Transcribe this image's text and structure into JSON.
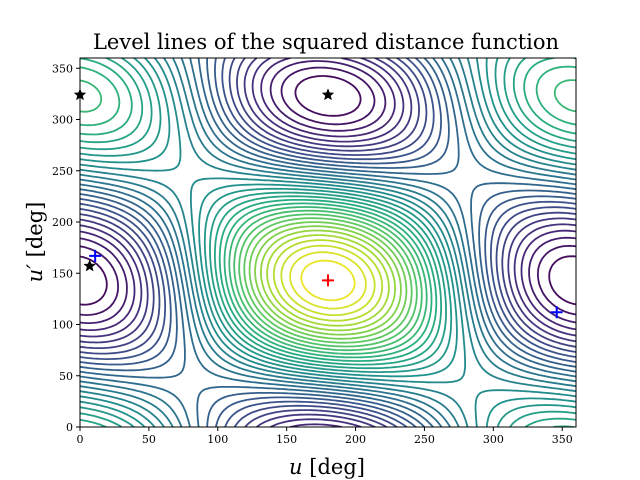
{
  "chart_data": {
    "type": "contour",
    "title": "Level lines of the squared distance function",
    "xlabel_var": "u",
    "xlabel_unit": " [deg]",
    "ylabel_var": "u′",
    "ylabel_unit": " [deg]",
    "xlim": [
      0,
      360
    ],
    "ylim": [
      0,
      360
    ],
    "xticks": [
      0,
      50,
      100,
      150,
      200,
      250,
      300,
      350
    ],
    "yticks": [
      0,
      50,
      100,
      150,
      200,
      250,
      300,
      350
    ],
    "colormap": [
      "#440154",
      "#472d7b",
      "#3b528b",
      "#2c728e",
      "#21918c",
      "#28ae80",
      "#5ec962",
      "#addc30",
      "#fde725"
    ],
    "grid": false,
    "surface": {
      "mode_a": [
        0.9,
        0.9
      ],
      "mode_b": [
        -0.85,
        -0.95
      ],
      "cross": [
        0.35,
        0.2
      ],
      "flat": [
        0.22,
        0.12
      ]
    },
    "levels": 36,
    "markers": [
      {
        "name": "minimum",
        "symbol": "plus",
        "color": "#ff0000",
        "x": 180,
        "y": 143
      },
      {
        "name": "critical-1",
        "symbol": "plus",
        "color": "#0000ff",
        "x": 11,
        "y": 167
      },
      {
        "name": "critical-2",
        "symbol": "plus",
        "color": "#0000ff",
        "x": 346,
        "y": 112
      },
      {
        "name": "saddle-1",
        "symbol": "star",
        "color": "#000000",
        "x": 180,
        "y": 324
      },
      {
        "name": "saddle-2",
        "symbol": "star",
        "color": "#000000",
        "x": 0,
        "y": 324
      },
      {
        "name": "saddle-3",
        "symbol": "star",
        "color": "#000000",
        "x": 7,
        "y": 157
      }
    ]
  }
}
